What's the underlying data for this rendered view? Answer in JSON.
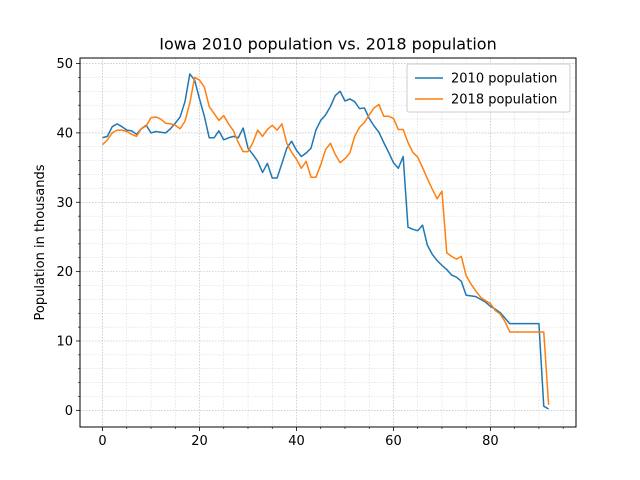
{
  "chart_data": {
    "type": "line",
    "title": "Iowa 2010 population vs. 2018 population",
    "xlabel": "",
    "ylabel": "Population in thousands",
    "xlim": [
      -4.65,
      97.65
    ],
    "ylim": [
      -2.4,
      50.8
    ],
    "xticks": [
      0,
      20,
      40,
      60,
      80
    ],
    "yticks": [
      0,
      10,
      20,
      30,
      40,
      50
    ],
    "grid": true,
    "legend_position": "upper-right",
    "series": [
      {
        "name": "2010 population",
        "color": "#1f77b4",
        "x": [
          0,
          1,
          2,
          3,
          4,
          5,
          6,
          7,
          8,
          9,
          10,
          11,
          12,
          13,
          14,
          15,
          16,
          17,
          18,
          19,
          20,
          21,
          22,
          23,
          24,
          25,
          26,
          27,
          28,
          29,
          30,
          31,
          32,
          33,
          34,
          35,
          36,
          37,
          38,
          39,
          40,
          41,
          42,
          43,
          44,
          45,
          46,
          47,
          48,
          49,
          50,
          51,
          52,
          53,
          54,
          55,
          56,
          57,
          58,
          59,
          60,
          61,
          62,
          63,
          64,
          65,
          66,
          67,
          68,
          69,
          70,
          71,
          72,
          73,
          74,
          75,
          76,
          77,
          78,
          79,
          80,
          81,
          82,
          83,
          84,
          85,
          86,
          87,
          88,
          89,
          90,
          91,
          92
        ],
        "values": [
          39.3,
          39.5,
          40.9,
          41.3,
          40.9,
          40.4,
          40.3,
          39.8,
          40.6,
          41.1,
          40.0,
          40.2,
          40.1,
          40.0,
          40.6,
          41.4,
          42.3,
          44.5,
          48.5,
          47.6,
          44.9,
          42.4,
          39.3,
          39.3,
          40.3,
          39.0,
          39.3,
          39.5,
          39.3,
          40.7,
          37.8,
          36.9,
          35.9,
          34.3,
          35.6,
          33.5,
          33.5,
          35.6,
          37.8,
          38.8,
          37.5,
          36.6,
          37.1,
          37.8,
          40.4,
          41.8,
          42.6,
          43.8,
          45.4,
          46.0,
          44.6,
          44.9,
          44.5,
          43.5,
          43.6,
          42.1,
          41.0,
          40.1,
          38.6,
          37.2,
          35.7,
          34.9,
          36.6,
          26.4,
          26.1,
          25.9,
          26.7,
          23.8,
          22.5,
          21.6,
          20.9,
          20.3,
          19.5,
          19.2,
          18.6,
          16.6,
          16.5,
          16.4,
          16.0,
          15.6,
          15.0,
          14.6,
          14.1,
          13.3,
          12.5,
          12.5,
          12.5,
          12.5,
          12.5,
          12.5,
          12.5,
          0.6,
          0.2
        ]
      },
      {
        "name": "2018 population",
        "color": "#ff7f0e",
        "x": [
          0,
          1,
          2,
          3,
          4,
          5,
          6,
          7,
          8,
          9,
          10,
          11,
          12,
          13,
          14,
          15,
          16,
          17,
          18,
          19,
          20,
          21,
          22,
          23,
          24,
          25,
          26,
          27,
          28,
          29,
          30,
          31,
          32,
          33,
          34,
          35,
          36,
          37,
          38,
          39,
          40,
          41,
          42,
          43,
          44,
          45,
          46,
          47,
          48,
          49,
          50,
          51,
          52,
          53,
          54,
          55,
          56,
          57,
          58,
          59,
          60,
          61,
          62,
          63,
          64,
          65,
          66,
          67,
          68,
          69,
          70,
          71,
          72,
          73,
          74,
          75,
          76,
          77,
          78,
          79,
          80,
          81,
          82,
          83,
          84,
          85,
          86,
          87,
          88,
          89,
          90,
          91,
          92
        ],
        "values": [
          38.3,
          39.0,
          40.0,
          40.4,
          40.4,
          40.2,
          39.8,
          39.5,
          40.6,
          41.0,
          42.2,
          42.3,
          42.0,
          41.4,
          41.3,
          41.1,
          40.6,
          41.7,
          44.3,
          48.0,
          47.6,
          46.6,
          43.8,
          42.8,
          41.8,
          42.5,
          41.3,
          40.3,
          38.6,
          37.3,
          37.3,
          38.6,
          40.4,
          39.5,
          40.5,
          41.1,
          40.4,
          41.3,
          38.5,
          37.2,
          36.2,
          34.9,
          35.9,
          33.6,
          33.6,
          35.4,
          37.6,
          38.5,
          36.9,
          35.7,
          36.3,
          37.1,
          39.5,
          40.8,
          41.5,
          42.6,
          43.6,
          44.1,
          42.4,
          42.4,
          42.1,
          40.5,
          40.5,
          38.6,
          37.2,
          36.5,
          35.0,
          33.4,
          31.9,
          30.5,
          31.6,
          22.7,
          22.2,
          21.8,
          22.2,
          19.4,
          18.2,
          17.2,
          16.3,
          15.8,
          15.4,
          14.4,
          13.9,
          12.8,
          11.3,
          11.3,
          11.3,
          11.3,
          11.3,
          11.3,
          11.3,
          11.3,
          0.8
        ]
      }
    ]
  }
}
